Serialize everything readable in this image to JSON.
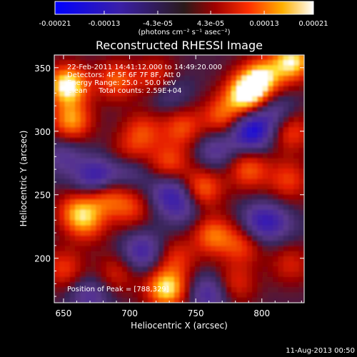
{
  "chart_data": {
    "type": "heatmap",
    "title": "Reconstructed RHESSI Image",
    "xlabel": "Heliocentric X (arcsec)",
    "ylabel": "Heliocentric Y (arcsec)",
    "xlim": [
      643,
      832
    ],
    "ylim": [
      165,
      360
    ],
    "x_ticks": [
      "650",
      "700",
      "750",
      "800"
    ],
    "x_tick_values": [
      650,
      700,
      750,
      800
    ],
    "y_ticks": [
      "200",
      "250",
      "300",
      "350"
    ],
    "y_tick_values": [
      200,
      250,
      300,
      350
    ],
    "colorbar": {
      "min": -0.00021,
      "max": 0.00021,
      "tick_labels": [
        "-0.00021",
        "-0.00013",
        "-4.3e-05",
        "4.3e-05",
        "0.00013",
        "0.00021"
      ],
      "tick_values": [
        -0.00021,
        -0.00013,
        -4.3e-05,
        4.3e-05,
        0.00013,
        0.00021
      ],
      "unit_label": "(photons cm⁻² s⁻¹ asec⁻²)"
    },
    "annotations": {
      "time": "22-Feb-2011 14:41:12.000 to 14:49:20.000",
      "detectors": "Detectors: 4F 5F 6F 7F 8F, Att 0",
      "energy": "Energy Range: 25.0 - 50.0 keV",
      "clean": "Clean     Total counts: 2.59E+04",
      "peak": "Position of Peak = [788,329]"
    },
    "blobs": [
      {
        "x": 653,
        "y": 336,
        "v": 1.0
      },
      {
        "x": 656,
        "y": 308,
        "v": 0.7
      },
      {
        "x": 690,
        "y": 340,
        "v": 0.55
      },
      {
        "x": 720,
        "y": 343,
        "v": 0.45
      },
      {
        "x": 788,
        "y": 329,
        "v": 1.0
      },
      {
        "x": 800,
        "y": 342,
        "v": 0.8
      },
      {
        "x": 823,
        "y": 355,
        "v": 0.9
      },
      {
        "x": 770,
        "y": 312,
        "v": 0.55
      },
      {
        "x": 740,
        "y": 303,
        "v": 0.5
      },
      {
        "x": 710,
        "y": 300,
        "v": 0.45
      },
      {
        "x": 700,
        "y": 280,
        "v": 0.55
      },
      {
        "x": 730,
        "y": 275,
        "v": 0.5
      },
      {
        "x": 755,
        "y": 255,
        "v": 0.6
      },
      {
        "x": 790,
        "y": 270,
        "v": 0.55
      },
      {
        "x": 822,
        "y": 300,
        "v": 0.5
      },
      {
        "x": 820,
        "y": 262,
        "v": 0.45
      },
      {
        "x": 680,
        "y": 250,
        "v": 0.65
      },
      {
        "x": 700,
        "y": 240,
        "v": 0.45
      },
      {
        "x": 660,
        "y": 237,
        "v": 0.55
      },
      {
        "x": 668,
        "y": 227,
        "v": 0.45
      },
      {
        "x": 763,
        "y": 218,
        "v": 0.6
      },
      {
        "x": 785,
        "y": 210,
        "v": 0.45
      },
      {
        "x": 735,
        "y": 200,
        "v": 0.4
      },
      {
        "x": 650,
        "y": 192,
        "v": 0.45
      },
      {
        "x": 690,
        "y": 188,
        "v": 0.35
      },
      {
        "x": 728,
        "y": 176,
        "v": 0.9
      },
      {
        "x": 780,
        "y": 180,
        "v": 0.4
      },
      {
        "x": 822,
        "y": 195,
        "v": 0.35
      },
      {
        "x": 820,
        "y": 235,
        "v": 0.35
      },
      {
        "x": 675,
        "y": 262,
        "v": -0.8
      },
      {
        "x": 700,
        "y": 272,
        "v": -0.55
      },
      {
        "x": 730,
        "y": 252,
        "v": -0.5
      },
      {
        "x": 710,
        "y": 205,
        "v": -0.55
      },
      {
        "x": 740,
        "y": 240,
        "v": -0.35
      },
      {
        "x": 792,
        "y": 300,
        "v": -0.85
      },
      {
        "x": 765,
        "y": 285,
        "v": -0.4
      },
      {
        "x": 818,
        "y": 232,
        "v": -0.5
      },
      {
        "x": 800,
        "y": 228,
        "v": -0.6
      },
      {
        "x": 810,
        "y": 315,
        "v": -0.4
      },
      {
        "x": 670,
        "y": 170,
        "v": -0.4
      },
      {
        "x": 760,
        "y": 172,
        "v": -0.5
      },
      {
        "x": 650,
        "y": 280,
        "v": -0.35
      },
      {
        "x": 730,
        "y": 330,
        "v": -0.3
      }
    ]
  },
  "footer": {
    "timestamp": "11-Aug-2013 00:50"
  }
}
